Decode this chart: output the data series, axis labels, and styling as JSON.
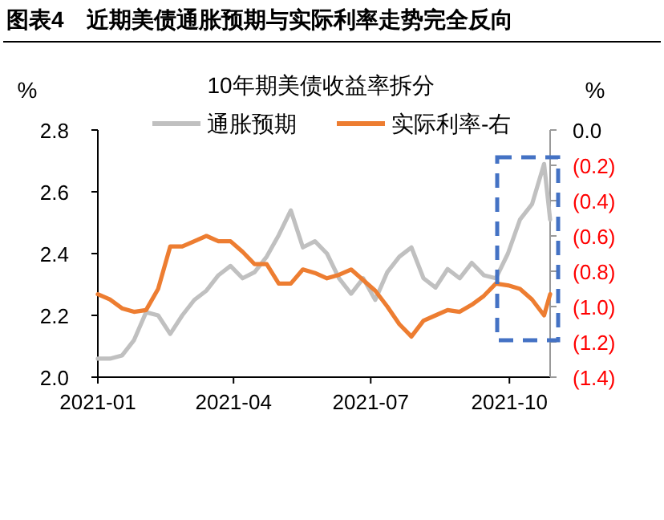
{
  "chart_data": {
    "type": "line",
    "title": "图表4　近期美债通胀预期与实际利率走势完全反向",
    "subtitle": "10年期美债收益率拆分",
    "ylabel": "%",
    "y2label": "%",
    "x": [
      "2021-01-01",
      "2021-01-09",
      "2021-01-17",
      "2021-01-25",
      "2021-02-02",
      "2021-02-10",
      "2021-02-18",
      "2021-02-26",
      "2021-03-06",
      "2021-03-14",
      "2021-03-22",
      "2021-03-30",
      "2021-04-07",
      "2021-04-15",
      "2021-04-23",
      "2021-05-01",
      "2021-05-09",
      "2021-05-17",
      "2021-05-25",
      "2021-06-02",
      "2021-06-10",
      "2021-06-18",
      "2021-06-26",
      "2021-07-04",
      "2021-07-12",
      "2021-07-20",
      "2021-07-28",
      "2021-08-05",
      "2021-08-13",
      "2021-08-21",
      "2021-08-29",
      "2021-09-06",
      "2021-09-14",
      "2021-09-22",
      "2021-09-30",
      "2021-10-08",
      "2021-10-16",
      "2021-10-24",
      "2021-10-28"
    ],
    "series": [
      {
        "name": "通胀预期",
        "color": "#c0c0c0",
        "values": [
          2.06,
          2.06,
          2.07,
          2.12,
          2.21,
          2.2,
          2.14,
          2.2,
          2.25,
          2.28,
          2.33,
          2.36,
          2.32,
          2.34,
          2.39,
          2.46,
          2.54,
          2.42,
          2.44,
          2.4,
          2.32,
          2.27,
          2.32,
          2.25,
          2.34,
          2.39,
          2.42,
          2.32,
          2.29,
          2.35,
          2.32,
          2.37,
          2.33,
          2.32,
          2.4,
          2.51,
          2.56,
          2.69,
          2.51
        ]
      },
      {
        "name": "实际利率-右",
        "color": "#ed7d31",
        "axis": "y2",
        "values": [
          -0.93,
          -0.96,
          -1.01,
          -1.03,
          -1.02,
          -0.9,
          -0.66,
          -0.66,
          -0.63,
          -0.6,
          -0.63,
          -0.63,
          -0.69,
          -0.76,
          -0.76,
          -0.87,
          -0.87,
          -0.79,
          -0.81,
          -0.84,
          -0.82,
          -0.79,
          -0.85,
          -0.91,
          -1.0,
          -1.1,
          -1.17,
          -1.08,
          -1.05,
          -1.02,
          -1.03,
          -0.99,
          -0.94,
          -0.87,
          -0.88,
          -0.9,
          -0.96,
          -1.05,
          -0.93
        ]
      }
    ],
    "xlim": [
      "2021-01-01",
      "2021-10-28"
    ],
    "xticks": [
      {
        "value": "2021-01-01",
        "label": "2021-01"
      },
      {
        "value": "2021-04-01",
        "label": "2021-04"
      },
      {
        "value": "2021-07-01",
        "label": "2021-07"
      },
      {
        "value": "2021-10-01",
        "label": "2021-10"
      }
    ],
    "ylim": [
      2.0,
      2.8
    ],
    "yticks": [
      {
        "value": 2.0,
        "label": "2.0"
      },
      {
        "value": 2.2,
        "label": "2.2"
      },
      {
        "value": 2.4,
        "label": "2.4"
      },
      {
        "value": 2.6,
        "label": "2.6"
      },
      {
        "value": 2.8,
        "label": "2.8"
      }
    ],
    "y2lim": [
      -1.4,
      0
    ],
    "y2ticks": [
      {
        "value": 0,
        "label": "0.0"
      },
      {
        "value": -0.2,
        "label": "(0.2)"
      },
      {
        "value": -0.4,
        "label": "(0.4)"
      },
      {
        "value": -0.6,
        "label": "(0.6)"
      },
      {
        "value": -0.8,
        "label": "(0.8)"
      },
      {
        "value": -1.0,
        "label": "(1.0)"
      },
      {
        "value": -1.2,
        "label": "(1.2)"
      },
      {
        "value": -1.4,
        "label": "(1.4)"
      }
    ],
    "grid": false,
    "legend": "top",
    "marker": "none",
    "line_style": "solid"
  }
}
